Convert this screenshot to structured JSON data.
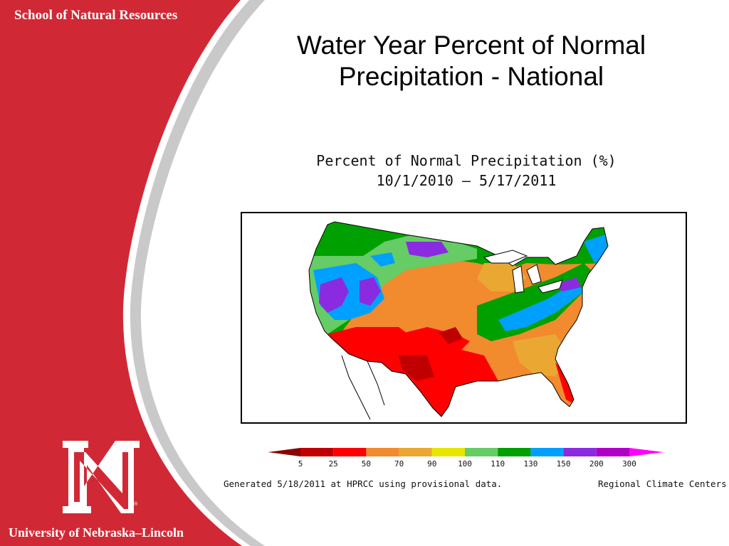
{
  "header": {
    "school": "School of Natural Resources",
    "university": "University of Nebraska–Lincoln",
    "logo_icon": "nebraska-n-logo",
    "logo_mark": "®"
  },
  "slide": {
    "title_line1": "Water Year Percent of Normal",
    "title_line2": "Precipitation - National"
  },
  "map": {
    "title_line1": "Percent of Normal Precipitation (%)",
    "title_line2": "10/1/2010 – 5/17/2011",
    "legend": {
      "values": [
        "5",
        "25",
        "50",
        "70",
        "90",
        "100",
        "110",
        "130",
        "150",
        "200",
        "300"
      ],
      "colors": [
        "#8b0000",
        "#c00000",
        "#ff0000",
        "#f28a2e",
        "#eaa832",
        "#e6e600",
        "#66cc66",
        "#00a000",
        "#00a0ff",
        "#8a2be2",
        "#b000c8",
        "#ff00ff"
      ]
    },
    "footer_left": "Generated 5/18/2011 at HPRCC using provisional data.",
    "footer_right": "Regional Climate Centers"
  },
  "colors": {
    "brand_red": "#d02935",
    "stripe_gray": "#c8c8c8"
  }
}
